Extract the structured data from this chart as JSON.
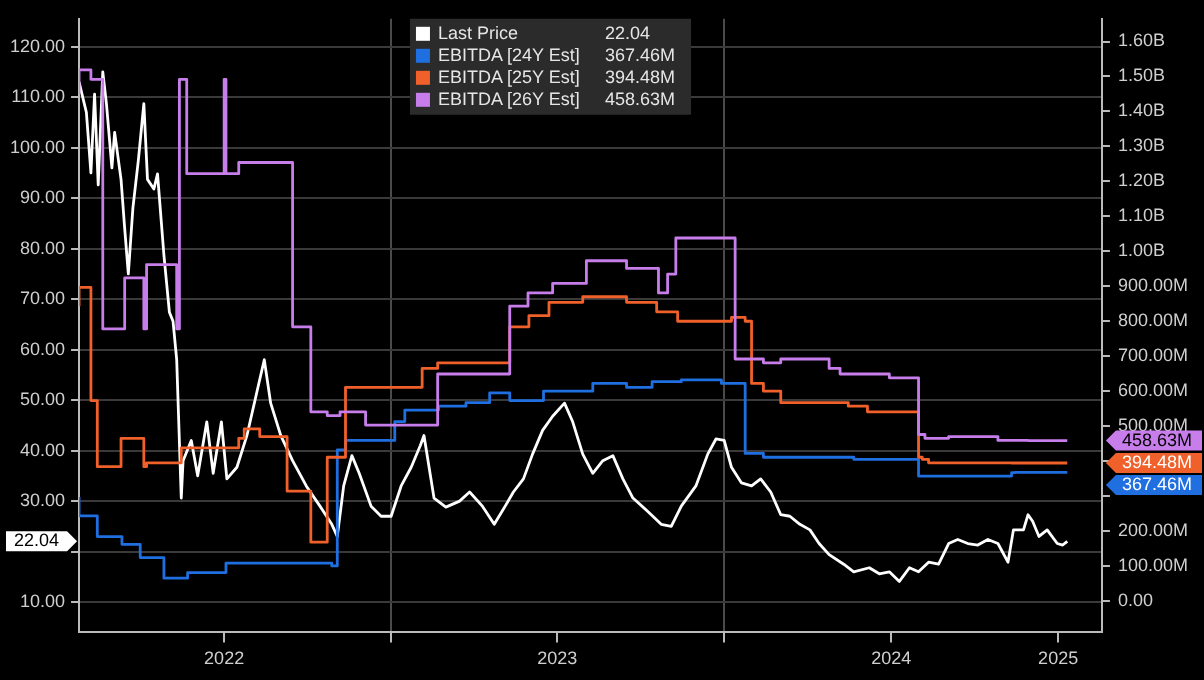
{
  "chart_data": {
    "type": "line",
    "legend": "top",
    "grid": true,
    "marker": "none",
    "xlim": [
      "2022-01-24",
      "2025-02-18"
    ],
    "xticks": [
      {
        "value": "2022-07-02",
        "label": "2022"
      },
      {
        "value": "2023-01-01",
        "label": null
      },
      {
        "value": "2023-07-02",
        "label": "2023"
      },
      {
        "value": "2024-01-01",
        "label": null
      },
      {
        "value": "2024-07-02",
        "label": "2024"
      },
      {
        "value": "2025-01-01",
        "label": "2025"
      }
    ],
    "ylim": [
      4,
      125.5
    ],
    "yticks": [
      {
        "value": 10,
        "label": "10.00"
      },
      {
        "value": 20,
        "label": null
      },
      {
        "value": 30,
        "label": "30.00"
      },
      {
        "value": 40,
        "label": "40.00"
      },
      {
        "value": 50,
        "label": "50.00"
      },
      {
        "value": 60,
        "label": "60.00"
      },
      {
        "value": 70,
        "label": "70.00"
      },
      {
        "value": 80,
        "label": "80.00"
      },
      {
        "value": 90,
        "label": "90.00"
      },
      {
        "value": 100,
        "label": "100.00"
      },
      {
        "value": 110,
        "label": "110.00"
      },
      {
        "value": 120,
        "label": "120.00"
      }
    ],
    "y2lim": [
      -90000000,
      1665000000
    ],
    "y2ticks": [
      {
        "value": 0,
        "label": "0.00"
      },
      {
        "value": 100000000,
        "label": "100.00M"
      },
      {
        "value": 200000000,
        "label": "200.00M"
      },
      {
        "value": 300000000,
        "label": null
      },
      {
        "value": 400000000,
        "label": null
      },
      {
        "value": 500000000,
        "label": "500.00M"
      },
      {
        "value": 600000000,
        "label": "600.00M"
      },
      {
        "value": 700000000,
        "label": "700.00M"
      },
      {
        "value": 800000000,
        "label": "800.00M"
      },
      {
        "value": 900000000,
        "label": "900.00M"
      },
      {
        "value": 1000000000,
        "label": "1.00B"
      },
      {
        "value": 1100000000,
        "label": "1.10B"
      },
      {
        "value": 1200000000,
        "label": "1.20B"
      },
      {
        "value": 1300000000,
        "label": "1.30B"
      },
      {
        "value": 1400000000,
        "label": "1.40B"
      },
      {
        "value": 1500000000,
        "label": "1.50B"
      },
      {
        "value": 1600000000,
        "label": "1.60B"
      }
    ],
    "annotations": [
      "22.04",
      "367.46M",
      "394.48M",
      "458.63M",
      "22.04",
      "367.46M",
      "394.48M",
      "458.63M"
    ],
    "series": [
      {
        "name": "Last Price",
        "type": "line",
        "axis": "y",
        "color": "#ffffff",
        "x": [
          "2022-01-24",
          "2022-02-01",
          "2022-02-06",
          "2022-02-10",
          "2022-02-14",
          "2022-02-19",
          "2022-02-23",
          "2022-03-01",
          "2022-03-04",
          "2022-03-11",
          "2022-03-15",
          "2022-03-19",
          "2022-03-24",
          "2022-03-30",
          "2022-04-05",
          "2022-04-09",
          "2022-04-16",
          "2022-04-20",
          "2022-04-27",
          "2022-05-03",
          "2022-05-07",
          "2022-05-11",
          "2022-05-16",
          "2022-05-18",
          "2022-05-27",
          "2022-06-03",
          "2022-06-13",
          "2022-06-20",
          "2022-06-29",
          "2022-07-05",
          "2022-07-16",
          "2022-07-27",
          "2022-08-07",
          "2022-08-15",
          "2022-08-22",
          "2022-09-02",
          "2022-09-15",
          "2022-09-30",
          "2022-10-15",
          "2022-10-28",
          "2022-11-03",
          "2022-11-10",
          "2022-11-19",
          "2022-11-27",
          "2022-12-10",
          "2022-12-21",
          "2023-01-01",
          "2023-01-12",
          "2023-01-23",
          "2023-02-02",
          "2023-02-06",
          "2023-02-17",
          "2023-03-02",
          "2023-03-17",
          "2023-03-28",
          "2023-04-11",
          "2023-04-24",
          "2023-05-06",
          "2023-05-15",
          "2023-05-26",
          "2023-06-05",
          "2023-06-16",
          "2023-06-27",
          "2023-07-10",
          "2023-07-19",
          "2023-07-30",
          "2023-08-10",
          "2023-08-21",
          "2023-09-01",
          "2023-09-12",
          "2023-09-23",
          "2023-10-09",
          "2023-10-24",
          "2023-11-04",
          "2023-11-15",
          "2023-12-01",
          "2023-12-14",
          "2023-12-23",
          "2024-01-01",
          "2024-01-09",
          "2024-01-20",
          "2024-01-31",
          "2024-02-10",
          "2024-02-21",
          "2024-03-03",
          "2024-03-13",
          "2024-03-24",
          "2024-04-04",
          "2024-04-14",
          "2024-04-25",
          "2024-05-11",
          "2024-05-22",
          "2024-06-08",
          "2024-06-19",
          "2024-06-30",
          "2024-07-11",
          "2024-07-22",
          "2024-08-01",
          "2024-08-12",
          "2024-08-23",
          "2024-09-03",
          "2024-09-13",
          "2024-09-24",
          "2024-10-05",
          "2024-10-16",
          "2024-10-27",
          "2024-11-07",
          "2024-11-13",
          "2024-11-24",
          "2024-11-29",
          "2024-12-04",
          "2024-12-11",
          "2024-12-20",
          "2024-12-31",
          "2025-01-06",
          "2025-01-11"
        ],
        "values": [
          113,
          107,
          95,
          110.6,
          92.6,
          115,
          108.7,
          96,
          103,
          93.7,
          84,
          75,
          88,
          97.5,
          108.7,
          93.7,
          91.8,
          94.8,
          78.7,
          67.4,
          65.6,
          58,
          30.6,
          38,
          42,
          35,
          45.7,
          35.5,
          45.7,
          34.4,
          36.7,
          43,
          51.7,
          58,
          49.4,
          43,
          38,
          33,
          29,
          25.4,
          23,
          33,
          39,
          35.5,
          29,
          27,
          27,
          33,
          36.7,
          41,
          43,
          30.6,
          28.8,
          30,
          31.8,
          29,
          25.4,
          29,
          31.8,
          34.4,
          39.3,
          44,
          46.8,
          49.4,
          45.7,
          39.3,
          35.5,
          38,
          39,
          34.4,
          30.6,
          28,
          25.4,
          25,
          29,
          33,
          39.3,
          42.3,
          42,
          36.7,
          33.6,
          33,
          34.4,
          31.8,
          27.3,
          27,
          25.4,
          24.3,
          21.6,
          19.4,
          17.5,
          16,
          16.8,
          15.6,
          16,
          14.1,
          16.8,
          16,
          17.9,
          17.5,
          21.6,
          22.4,
          21.6,
          21.3,
          22.4,
          21.6,
          17.9,
          24.3,
          24.3,
          27.3,
          26,
          23,
          24.3,
          21.6,
          21.3,
          22.04
        ]
      },
      {
        "name": "EBITDA [24Y Est]",
        "type": "step",
        "axis": "y2",
        "color": "#1f6fe0",
        "x": [
          "2022-01-24",
          "2022-02-13",
          "2022-03-12",
          "2022-04-01",
          "2022-04-27",
          "2022-05-23",
          "2022-07-04",
          "2022-08-10",
          "2022-10-28",
          "2022-11-03",
          "2022-11-12",
          "2022-11-21",
          "2023-01-05",
          "2023-01-16",
          "2023-02-22",
          "2023-03-24",
          "2023-04-19",
          "2023-05-11",
          "2023-06-17",
          "2023-08-10",
          "2023-09-16",
          "2023-10-14",
          "2023-11-15",
          "2023-12-29",
          "2024-01-24",
          "2024-02-13",
          "2024-05-22",
          "2024-08-01",
          "2024-08-04",
          "2024-11-11",
          "2024-11-15",
          "2025-01-11"
        ],
        "values": [
          297000000,
          243000000,
          184000000,
          162000000,
          124000000,
          65000000,
          81000000,
          108000000,
          108000000,
          100000000,
          432000000,
          459000000,
          459000000,
          513000000,
          546000000,
          557000000,
          567000000,
          595000000,
          573000000,
          600000000,
          622000000,
          611000000,
          627000000,
          632000000,
          622000000,
          422000000,
          411000000,
          405000000,
          357000000,
          357000000,
          367000000,
          367460000
        ]
      },
      {
        "name": "EBITDA [25Y Est]",
        "type": "step",
        "axis": "y2",
        "color": "#f0602a",
        "x": [
          "2022-01-24",
          "2022-02-06",
          "2022-02-13",
          "2022-03-11",
          "2022-04-05",
          "2022-04-08",
          "2022-05-16",
          "2022-07-18",
          "2022-07-24",
          "2022-08-10",
          "2022-09-09",
          "2022-10-05",
          "2022-10-23",
          "2022-11-12",
          "2023-02-04",
          "2023-02-21",
          "2023-05-11",
          "2023-06-01",
          "2023-06-23",
          "2023-07-30",
          "2023-09-16",
          "2023-10-19",
          "2023-11-11",
          "2024-01-09",
          "2024-01-24",
          "2024-01-31",
          "2024-02-13",
          "2024-03-03",
          "2024-05-16",
          "2024-06-06",
          "2024-08-01",
          "2024-08-05",
          "2024-08-12",
          "2024-11-11",
          "2025-01-11"
        ],
        "values": [
          843000000,
          897000000,
          573000000,
          384000000,
          465000000,
          384000000,
          395000000,
          438000000,
          465000000,
          492000000,
          470000000,
          314000000,
          168000000,
          411000000,
          611000000,
          665000000,
          681000000,
          784000000,
          816000000,
          854000000,
          870000000,
          854000000,
          827000000,
          800000000,
          811000000,
          800000000,
          622000000,
          600000000,
          567000000,
          557000000,
          541000000,
          411000000,
          405000000,
          395000000,
          394480000
        ]
      },
      {
        "name": "EBITDA [26Y Est]",
        "type": "step",
        "axis": "y2",
        "color": "#c77dea",
        "x": [
          "2022-01-24",
          "2022-02-06",
          "2022-02-19",
          "2022-03-15",
          "2022-04-05",
          "2022-04-08",
          "2022-05-11",
          "2022-05-14",
          "2022-05-22",
          "2022-07-02",
          "2022-07-04",
          "2022-07-18",
          "2022-09-15",
          "2022-10-05",
          "2022-10-23",
          "2022-11-06",
          "2022-12-04",
          "2023-02-21",
          "2023-05-11",
          "2023-05-31",
          "2023-06-27",
          "2023-08-03",
          "2023-09-16",
          "2023-10-21",
          "2023-10-31",
          "2023-11-09",
          "2024-01-13",
          "2024-02-13",
          "2024-03-03",
          "2024-04-25",
          "2024-05-07",
          "2024-06-30",
          "2024-08-01",
          "2024-08-08",
          "2024-09-03",
          "2024-10-27",
          "2024-11-29",
          "2025-01-11"
        ],
        "values": [
          1449000000,
          1519000000,
          1492000000,
          778000000,
          924000000,
          778000000,
          962000000,
          778000000,
          1492000000,
          1222000000,
          1492000000,
          1222000000,
          1254000000,
          784000000,
          541000000,
          530000000,
          541000000,
          503000000,
          649000000,
          843000000,
          881000000,
          908000000,
          973000000,
          951000000,
          881000000,
          935000000,
          1038000000,
          692000000,
          681000000,
          692000000,
          665000000,
          649000000,
          638000000,
          476000000,
          465000000,
          470000000,
          459000000,
          458630000
        ]
      }
    ]
  }
}
